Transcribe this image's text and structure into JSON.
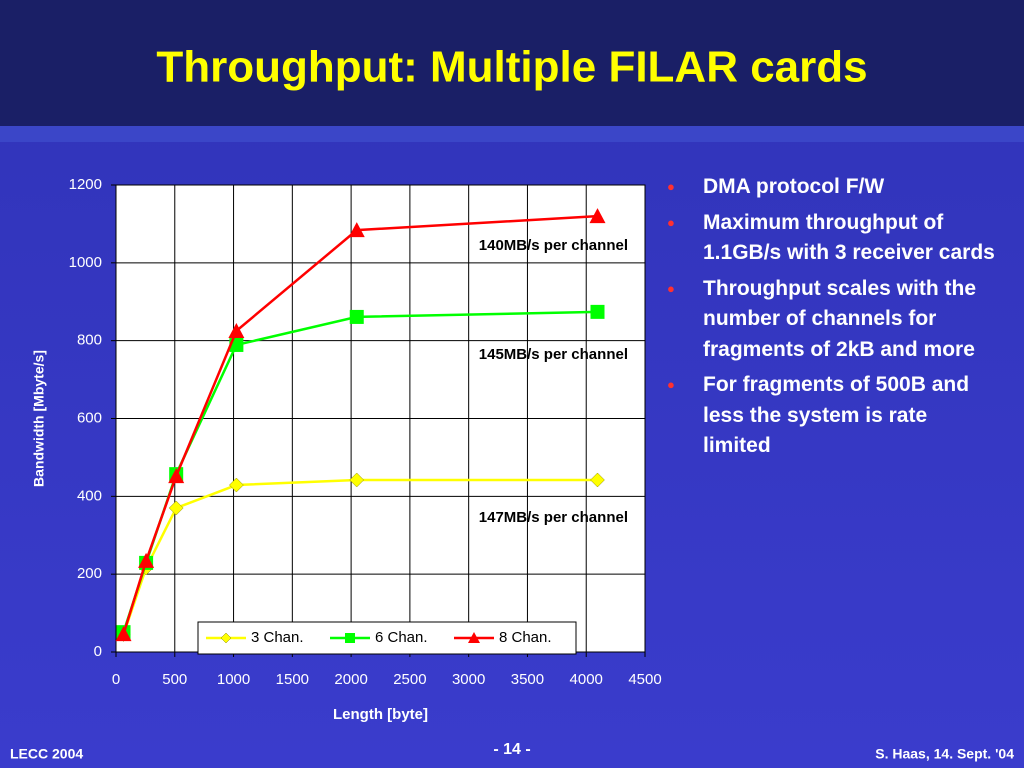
{
  "header": {
    "title": "Throughput: Multiple FILAR cards"
  },
  "chart_data": {
    "type": "line",
    "x_label": "Length [byte]",
    "y_label": "Bandwidth [Mbyte/s]",
    "x": [
      64,
      256,
      512,
      1024,
      2048,
      4096
    ],
    "series": [
      {
        "name": "3 Chan.",
        "color": "#ffff00",
        "marker": "diamond",
        "values": [
          45,
          216,
          370,
          429,
          442,
          442
        ]
      },
      {
        "name": "6 Chan.",
        "color": "#00ff00",
        "marker": "square",
        "values": [
          51,
          229,
          457,
          789,
          861,
          874
        ]
      },
      {
        "name": "8 Chan.",
        "color": "#ff0000",
        "marker": "triangle",
        "values": [
          46,
          234,
          452,
          825,
          1084,
          1120
        ]
      }
    ],
    "xlim": [
      0,
      4500
    ],
    "xticks": [
      0,
      500,
      1000,
      1500,
      2000,
      2500,
      3000,
      3500,
      4000,
      4500
    ],
    "ylim": [
      0,
      1200
    ],
    "yticks": [
      0,
      200,
      400,
      600,
      800,
      1000,
      1200
    ],
    "grid": true,
    "legend": "bottom",
    "annotations": [
      "140MB/s per channel",
      "145MB/s per channel",
      "147MB/s per channel"
    ]
  },
  "bullets": [
    "DMA protocol F/W",
    "Maximum throughput of 1.1GB/s with 3 receiver cards",
    "Throughput scales with the number of channels for fragments of 2kB and more",
    "For fragments of 500B and less the system is rate limited"
  ],
  "footer": {
    "left": "LECC 2004",
    "center": "- 14 -",
    "right": "S. Haas, 14. Sept. '04"
  }
}
